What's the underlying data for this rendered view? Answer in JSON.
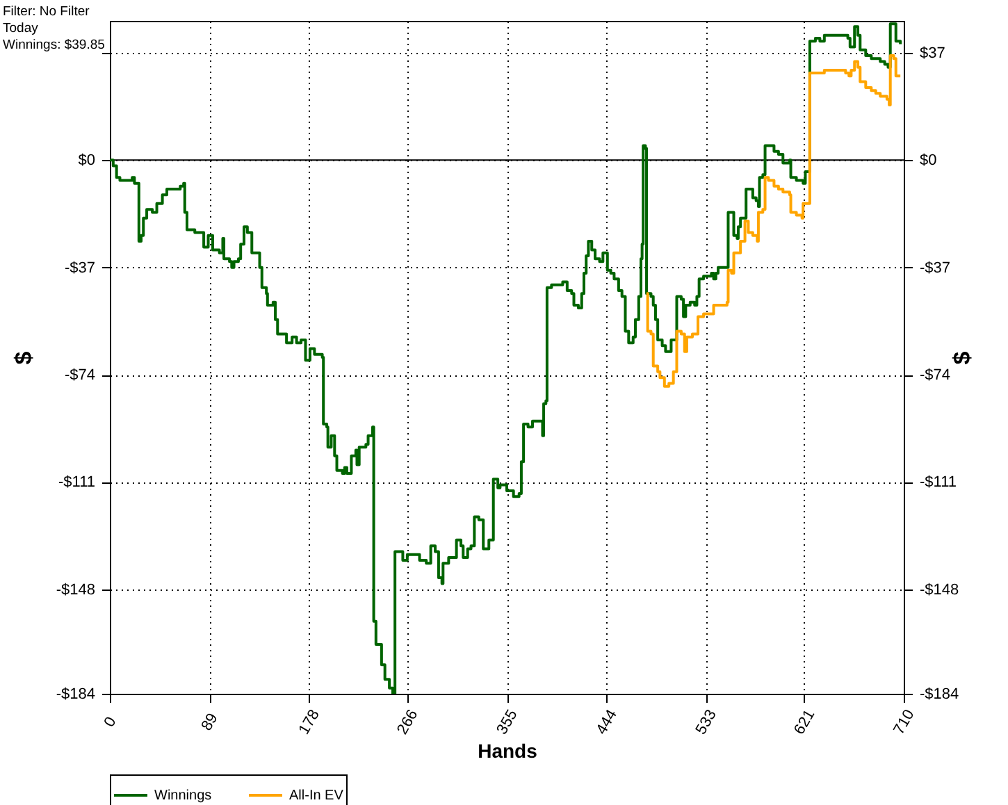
{
  "chart_data": {
    "type": "step",
    "xlabel": "Hands",
    "ylabel": "$",
    "y2label": "$",
    "annotations": [
      "Filter: No Filter",
      "Today",
      "Winnings: $39.85"
    ],
    "xlim": [
      0,
      710
    ],
    "xticks": [
      0,
      89,
      178,
      266,
      355,
      444,
      533,
      621,
      710
    ],
    "ylim": [
      -184,
      48
    ],
    "yticks": [
      {
        "value": 37,
        "label": null
      },
      {
        "value": 0,
        "label": "$0"
      },
      {
        "value": -37,
        "label": "-$37"
      },
      {
        "value": -74,
        "label": "-$74"
      },
      {
        "value": -111,
        "label": "-$111"
      },
      {
        "value": -148,
        "label": "-$148"
      },
      {
        "value": -184,
        "label": "-$184"
      }
    ],
    "y2lim": [
      -184,
      48
    ],
    "y2ticks": [
      {
        "value": 37,
        "label": "$37"
      },
      {
        "value": 0,
        "label": "$0"
      },
      {
        "value": -37,
        "label": "-$37"
      },
      {
        "value": -74,
        "label": "-$74"
      },
      {
        "value": -111,
        "label": "-$111"
      },
      {
        "value": -148,
        "label": "-$148"
      },
      {
        "value": -184,
        "label": "-$184"
      }
    ],
    "grid": true,
    "legend": "bottom left",
    "ref_lines": [
      {
        "axis": "y",
        "value": 0,
        "color": "#000000"
      }
    ],
    "series": [
      {
        "name": "Winnings",
        "color": "#006400",
        "x": [
          0,
          3,
          6,
          9,
          20,
          22,
          25,
          26,
          28,
          30,
          33,
          38,
          42,
          47,
          51,
          59,
          63,
          66,
          67,
          69,
          76,
          82,
          84,
          88,
          90,
          92,
          98,
          101,
          102,
          107,
          109,
          111,
          115,
          117,
          120,
          123,
          127,
          131,
          134,
          136,
          140,
          141,
          146,
          148,
          150,
          155,
          158,
          163,
          167,
          171,
          175,
          179,
          183,
          190,
          191,
          194,
          195,
          198,
          201,
          203,
          208,
          210,
          212,
          216,
          220,
          221,
          223,
          229,
          231,
          235,
          236,
          238,
          241,
          243,
          246,
          250,
          253,
          255,
          258,
          262,
          266,
          272,
          277,
          283,
          287,
          291,
          294,
          297,
          298,
          301,
          303,
          310,
          314,
          316,
          320,
          323,
          326,
          330,
          334,
          339,
          341,
          343,
          347,
          349,
          355,
          361,
          366,
          368,
          370,
          374,
          378,
          384,
          387,
          388,
          390,
          391,
          395,
          401,
          405,
          409,
          413,
          415,
          419,
          422,
          424,
          426,
          428,
          431,
          434,
          438,
          441,
          444,
          445,
          448,
          451,
          455,
          458,
          461,
          464,
          468,
          470,
          473,
          475,
          476,
          477,
          479,
          480,
          484,
          486,
          488,
          490,
          494,
          497,
          502,
          506,
          507,
          511,
          513,
          515,
          519,
          523,
          525,
          527,
          531,
          538,
          540,
          542,
          544,
          552,
          553,
          556,
          558,
          561,
          562,
          564,
          568,
          569,
          573,
          575,
          578,
          580,
          581,
          584,
          586,
          589,
          594,
          598,
          602,
          606,
          608,
          609,
          614,
          620,
          622,
          625,
          626,
          631,
          635,
          639,
          645,
          652,
          656,
          660,
          662,
          666,
          669,
          671,
          676,
          681,
          685,
          689,
          693,
          696,
          698,
          701,
          703,
          707
        ],
        "values": [
          0,
          -2,
          -6,
          -7,
          -6,
          -8,
          -8,
          -28,
          -26,
          -20,
          -17,
          -18,
          -15,
          -12,
          -10,
          -10,
          -9,
          -8,
          -18,
          -24,
          -25,
          -25,
          -30,
          -26,
          -26,
          -31,
          -32,
          -27,
          -34,
          -35,
          -37,
          -35,
          -34,
          -29,
          -23,
          -25,
          -32,
          -32,
          -37,
          -44,
          -46,
          -50,
          -49,
          -55,
          -60,
          -60,
          -63,
          -61,
          -63,
          -62,
          -69,
          -65,
          -67,
          -68,
          -91,
          -92,
          -99,
          -95,
          -102,
          -107,
          -108,
          -106,
          -108,
          -102,
          -100,
          -105,
          -99,
          -98,
          -95,
          -92,
          -159,
          -167,
          -167,
          -174,
          -179,
          -182,
          -184,
          -135,
          -135,
          -138,
          -136,
          -136,
          -138,
          -139,
          -133,
          -135,
          -144,
          -146,
          -139,
          -139,
          -137,
          -131,
          -133,
          -137,
          -134,
          -133,
          -123,
          -124,
          -134,
          -131,
          -131,
          -110,
          -113,
          -112,
          -114,
          -116,
          -115,
          -104,
          -91,
          -92,
          -90,
          -90,
          -95,
          -84,
          -83,
          -44,
          -43,
          -43,
          -42,
          -45,
          -46,
          -50,
          -51,
          -46,
          -39,
          -33,
          -28,
          -31,
          -34,
          -35,
          -32,
          -32,
          -38,
          -39,
          -41,
          -45,
          -47,
          -59,
          -63,
          -61,
          -55,
          -47,
          -34,
          -29,
          5,
          4,
          -46,
          -47,
          -50,
          -55,
          -62,
          -64,
          -66,
          -62,
          -62,
          -47,
          -48,
          -54,
          -50,
          -49,
          -50,
          -47,
          -41,
          -40,
          -39,
          -41,
          -39,
          -37,
          -37,
          -18,
          -18,
          -26,
          -27,
          -23,
          -20,
          -20,
          -10,
          -10,
          -13,
          -14,
          -16,
          -6,
          -5,
          5,
          5,
          3,
          2,
          -1,
          -1,
          0,
          -6,
          -7,
          -8,
          -4,
          -4,
          41,
          42,
          41,
          43,
          43,
          43,
          43,
          42,
          39,
          46,
          43,
          38,
          36,
          35,
          35,
          34,
          33,
          32,
          47,
          47,
          41,
          40
        ]
      },
      {
        "name": "All-In EV",
        "color": "#ffa500",
        "x": [
          480,
          481,
          484,
          486,
          490,
          492,
          496,
          500,
          504,
          507,
          511,
          514,
          516,
          521,
          526,
          531,
          540,
          544,
          552,
          553,
          556,
          558,
          562,
          564,
          568,
          571,
          575,
          579,
          580,
          584,
          586,
          589,
          594,
          598,
          602,
          608,
          609,
          614,
          619,
          620,
          625,
          626,
          631,
          639,
          645,
          652,
          658,
          661,
          663,
          666,
          669,
          671,
          676,
          681,
          685,
          689,
          695,
          697,
          698,
          701,
          703,
          707
        ],
        "values": [
          -46,
          -59,
          -60,
          -71,
          -73,
          -75,
          -78,
          -77,
          -73,
          -59,
          -60,
          -66,
          -61,
          -60,
          -54,
          -53,
          -50,
          -50,
          -49,
          -38,
          -39,
          -32,
          -32,
          -28,
          -21,
          -25,
          -26,
          -28,
          -18,
          -17,
          -6,
          -7,
          -9,
          -10,
          -11,
          -12,
          -18,
          -19,
          -20,
          -15,
          -15,
          30,
          30,
          31,
          31,
          31,
          30,
          29,
          31,
          34,
          32,
          27,
          25,
          24,
          23,
          22,
          21,
          19,
          36,
          35,
          29,
          29
        ]
      }
    ]
  }
}
